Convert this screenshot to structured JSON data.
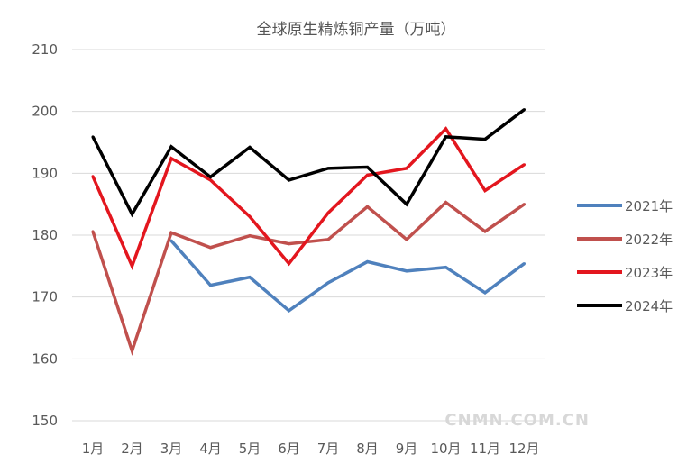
{
  "chart_data": {
    "type": "line",
    "title": "全球原生精炼铜产量（万吨）",
    "xlabel": "",
    "ylabel": "",
    "categories": [
      "1月",
      "2月",
      "3月",
      "4月",
      "5月",
      "6月",
      "7月",
      "8月",
      "9月",
      "10月",
      "11月",
      "12月"
    ],
    "ylim": [
      150,
      210
    ],
    "yticks": [
      150,
      160,
      170,
      180,
      190,
      200,
      210
    ],
    "grid": true,
    "legend_position": "right",
    "series": [
      {
        "name": "2021年",
        "color": "#4f81bd",
        "values": [
          null,
          null,
          179.1,
          171.9,
          173.2,
          167.8,
          172.3,
          175.7,
          174.2,
          174.8,
          170.7,
          175.4
        ]
      },
      {
        "name": "2022年",
        "color": "#c0504d",
        "values": [
          180.6,
          161.3,
          180.4,
          178.0,
          179.9,
          178.6,
          179.3,
          184.6,
          179.3,
          185.3,
          180.6,
          185.0
        ]
      },
      {
        "name": "2023年",
        "color": "#e3161e",
        "values": [
          189.5,
          175.0,
          192.4,
          188.9,
          183.0,
          175.4,
          183.6,
          189.7,
          190.8,
          197.2,
          187.2,
          191.4
        ]
      },
      {
        "name": "2024年",
        "color": "#000000",
        "values": [
          195.9,
          183.4,
          194.3,
          189.4,
          194.2,
          188.9,
          190.8,
          191.0,
          185.0,
          195.9,
          195.5,
          200.3
        ]
      }
    ]
  },
  "watermark": "CNMN.COM.CN"
}
